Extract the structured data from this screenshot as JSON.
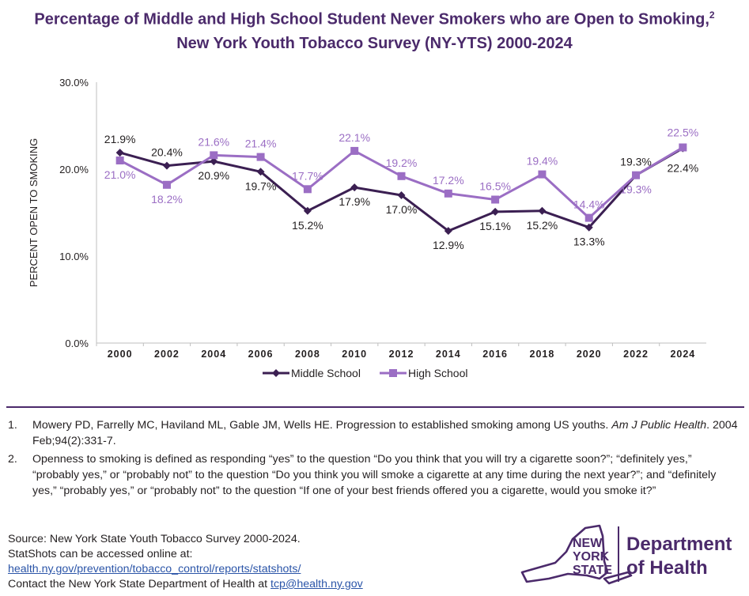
{
  "title": {
    "line1": "Percentage of Middle and High School Student Never Smokers who are Open to Smoking,",
    "line1_sup": "2",
    "line2": "New York Youth Tobacco Survey (NY-YTS) 2000-2024"
  },
  "chart_data": {
    "type": "line",
    "ylabel": "PERCENT OPEN TO SMOKING",
    "xlabel": "",
    "ylim": [
      0,
      30
    ],
    "y_ticks": [
      "0.0%",
      "10.0%",
      "20.0%",
      "30.0%"
    ],
    "x": [
      "2000",
      "2002",
      "2004",
      "2006",
      "2008",
      "2010",
      "2012",
      "2014",
      "2016",
      "2018",
      "2020",
      "2022",
      "2024"
    ],
    "series": [
      {
        "name": "Middle School",
        "color": "#3b1f52",
        "marker": "diamond",
        "values": [
          21.9,
          20.4,
          20.9,
          19.7,
          15.2,
          17.9,
          17.0,
          12.9,
          15.1,
          15.2,
          13.3,
          19.3,
          22.4
        ],
        "labels": [
          "21.9%",
          "20.4%",
          "20.9%",
          "19.7%",
          "15.2%",
          "17.9%",
          "17.0%",
          "12.9%",
          "15.1%",
          "15.2%",
          "13.3%",
          "19.3%",
          "22.4%"
        ]
      },
      {
        "name": "High School",
        "color": "#9b6ec4",
        "marker": "square",
        "values": [
          21.0,
          18.2,
          21.6,
          21.4,
          17.7,
          22.1,
          19.2,
          17.2,
          16.5,
          19.4,
          14.4,
          19.3,
          22.5
        ],
        "labels": [
          "21.0%",
          "18.2%",
          "21.6%",
          "21.4%",
          "17.7%",
          "22.1%",
          "19.2%",
          "17.2%",
          "16.5%",
          "19.4%",
          "14.4%",
          "19.3%",
          "22.5%"
        ]
      }
    ],
    "legend_position": "bottom",
    "grid": false
  },
  "footnotes": [
    {
      "num": "1.",
      "text": "Mowery PD, Farrelly MC, Haviland ML, Gable JM, Wells HE. Progression to established smoking among US youths. ",
      "journal": "Am J Public Health",
      "text_end": ". 2004 Feb;94(2):331-7."
    },
    {
      "num": "2.",
      "text": "Openness to smoking is defined as responding “yes” to the question “Do you think that you will try a cigarette soon?”; “definitely yes,” “probably yes,” or “probably not” to the question “Do you think you will smoke a cigarette at any time during the next year?”; and “definitely yes,” “probably yes,” or “probably not” to the question “If one of your best friends offered you a cigarette, would you smoke it?”"
    }
  ],
  "source": {
    "line1": "Source: New York State Youth Tobacco Survey 2000-2024.",
    "line2": "StatShots can be accessed online at:",
    "link": "health.ny.gov/prevention/tobacco_control/reports/statshots/",
    "contact_prefix": "Contact the New York State Department of Health at ",
    "email": "tcp@health.ny.gov"
  },
  "logo": {
    "line1": "NEW",
    "line2": "YORK",
    "line3": "STATE",
    "dept1": "Department",
    "dept2": "of Health",
    "color": "#4b2a6b"
  }
}
